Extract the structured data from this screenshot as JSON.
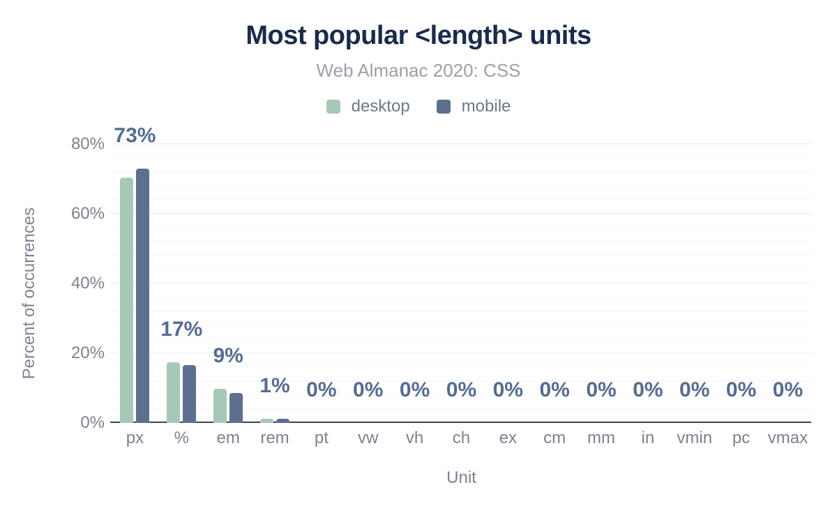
{
  "chart_data": {
    "type": "bar",
    "title": "Most popular <length> units",
    "subtitle": "Web Almanac 2020: CSS",
    "xlabel": "Unit",
    "ylabel": "Percent of occurrences",
    "categories": [
      "px",
      "%",
      "em",
      "rem",
      "pt",
      "vw",
      "vh",
      "ch",
      "ex",
      "cm",
      "mm",
      "in",
      "vmin",
      "pc",
      "vmax"
    ],
    "series": [
      {
        "name": "desktop",
        "color": "#a5c9b6",
        "values": [
          70.5,
          17.5,
          9.8,
          1.2,
          0,
          0,
          0,
          0,
          0,
          0,
          0,
          0,
          0,
          0,
          0
        ]
      },
      {
        "name": "mobile",
        "color": "#5c6f8e",
        "values": [
          73.0,
          16.6,
          8.7,
          1.3,
          0,
          0,
          0,
          0,
          0,
          0,
          0,
          0,
          0,
          0,
          0
        ]
      }
    ],
    "bar_labels": [
      "73%",
      "17%",
      "9%",
      "1%",
      "0%",
      "0%",
      "0%",
      "0%",
      "0%",
      "0%",
      "0%",
      "0%",
      "0%",
      "0%",
      "0%"
    ],
    "yticks": [
      {
        "value": 0,
        "label": "0%"
      },
      {
        "value": 20,
        "label": "20%"
      },
      {
        "value": 40,
        "label": "40%"
      },
      {
        "value": 60,
        "label": "60%"
      },
      {
        "value": 80,
        "label": "80%"
      }
    ],
    "ylim": [
      0,
      80
    ],
    "grid": {
      "minor_step": 4,
      "major_step": 20,
      "orientation": "horizontal"
    },
    "legend_position": "top",
    "colors": {
      "title": "#1a2b49",
      "subtitle": "#9aa1a8",
      "tick_text": "#7b8290",
      "data_label": "#566b90",
      "axis_line": "#36435c"
    }
  }
}
